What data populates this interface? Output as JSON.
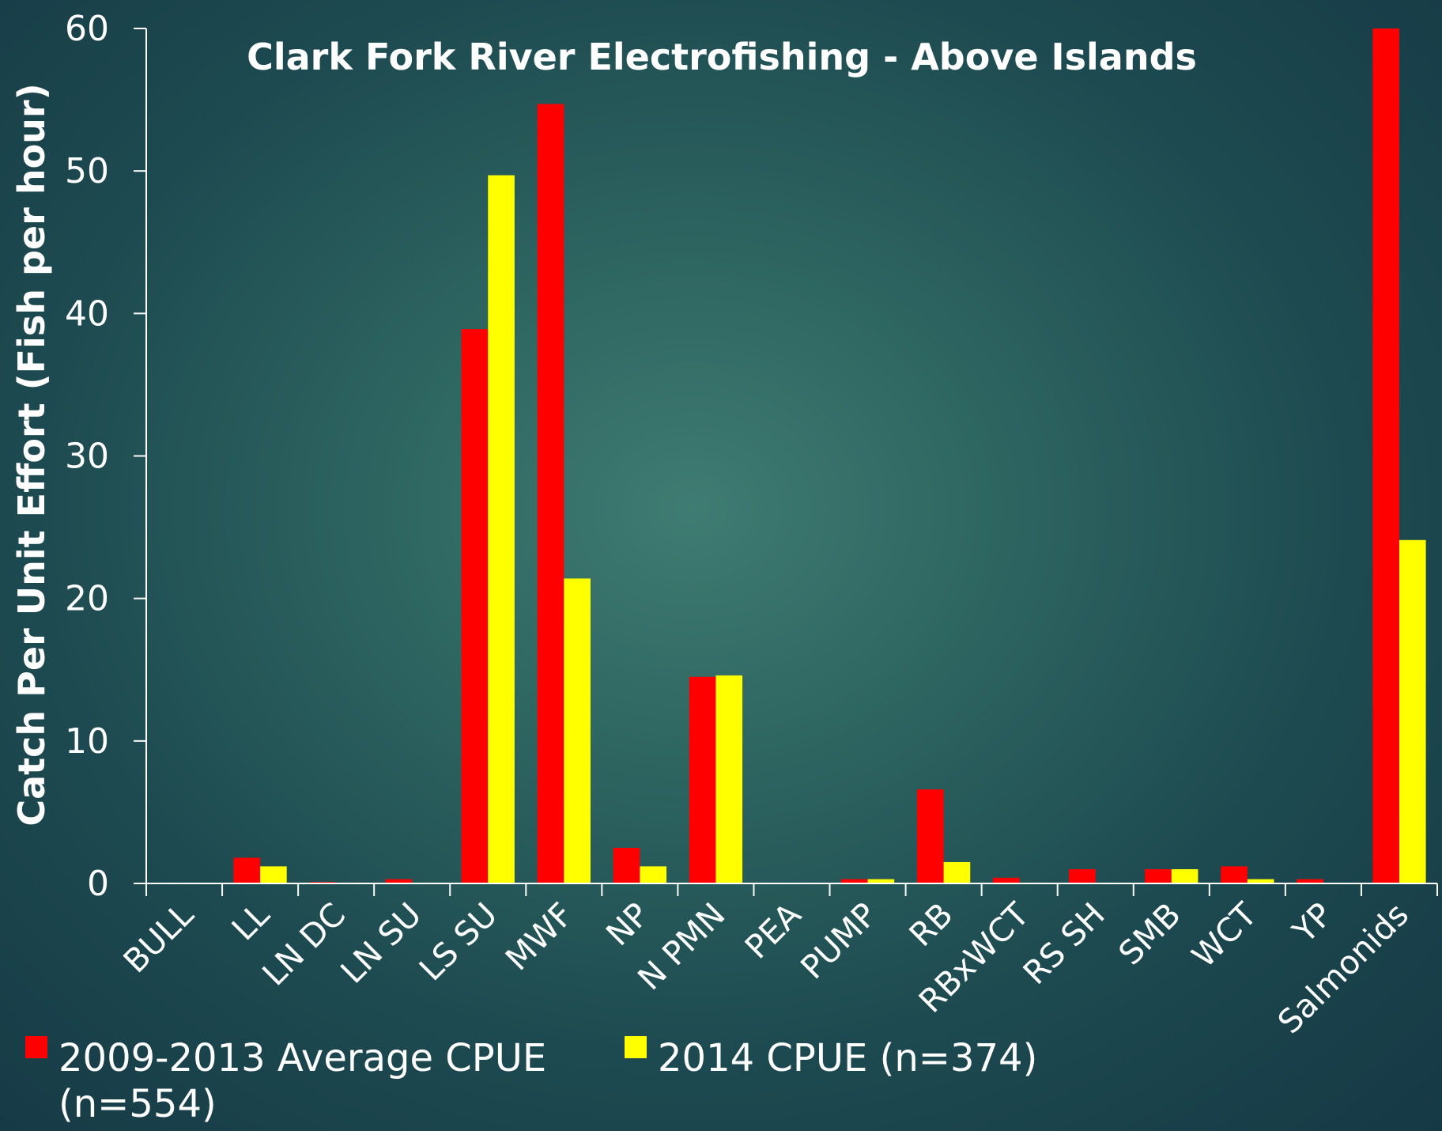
{
  "chart_data": {
    "type": "bar",
    "title": "Clark Fork River Electrofishing - Above Islands",
    "xlabel": "",
    "ylabel": "Catch Per Unit Effort (Fish per hour)",
    "ylim": [
      0,
      60
    ],
    "yticks": [
      0,
      10,
      20,
      30,
      40,
      50,
      60
    ],
    "grid": false,
    "legend_position": "bottom",
    "categories": [
      "BULL",
      "LL",
      "LN DC",
      "LN SU",
      "LS SU",
      "MWF",
      "NP",
      "N PMN",
      "PEA",
      "PUMP",
      "RB",
      "RBxWCT",
      "RS SH",
      "SMB",
      "WCT",
      "YP",
      "Salmonids"
    ],
    "series": [
      {
        "name": "2009-2013 Average CPUE (n=554)",
        "legend_lines": [
          "2009-2013 Average CPUE",
          "(n=554)"
        ],
        "color": "#ff0000",
        "values": [
          0,
          1.8,
          0.1,
          0.3,
          38.9,
          54.7,
          2.5,
          14.5,
          0,
          0.3,
          6.6,
          0.4,
          1.0,
          1.0,
          1.2,
          0.3,
          60.0
        ]
      },
      {
        "name": "2014 CPUE (n=374)",
        "legend_lines": [
          "2014 CPUE (n=374)"
        ],
        "color": "#ffff00",
        "values": [
          0,
          1.2,
          0,
          0,
          49.7,
          21.4,
          1.2,
          14.6,
          0,
          0.3,
          1.5,
          0,
          0,
          1.0,
          0.3,
          0,
          24.1
        ]
      }
    ]
  }
}
